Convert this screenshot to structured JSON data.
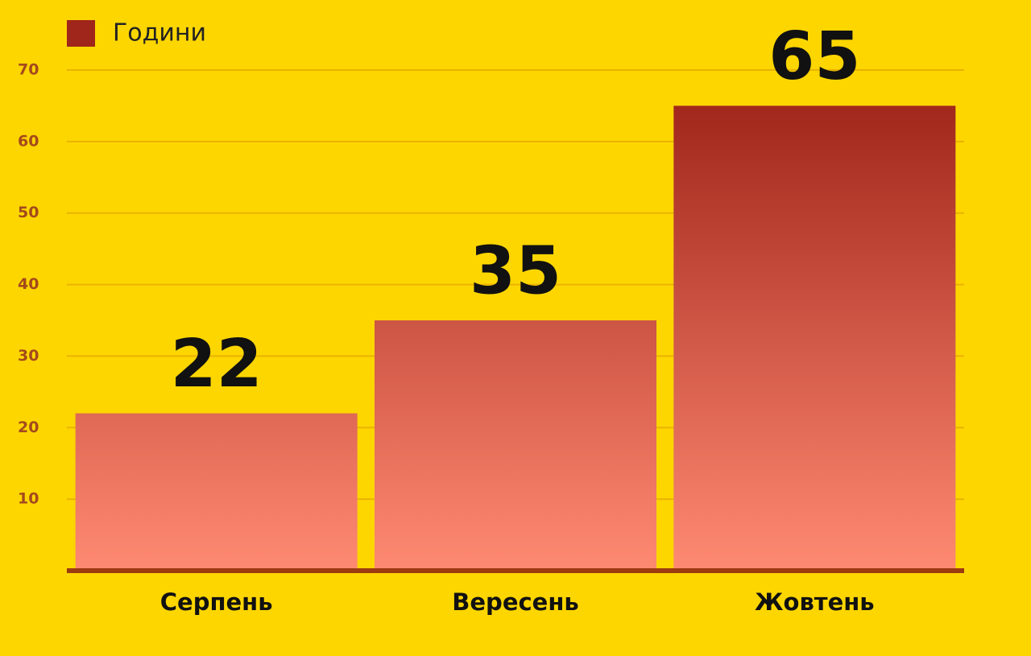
{
  "chart_data": {
    "type": "bar",
    "categories": [
      "Серпень",
      "Вересень",
      "Жовтень"
    ],
    "series": [
      {
        "name": "Години",
        "colors": [
          "#ff8a72",
          "#a0251a"
        ],
        "values": [
          22,
          35,
          65
        ]
      }
    ],
    "ylim": [
      0,
      70
    ],
    "yticks": [
      10,
      20,
      30,
      40,
      50,
      60,
      70
    ],
    "grid": true,
    "legend": "top-left"
  }
}
